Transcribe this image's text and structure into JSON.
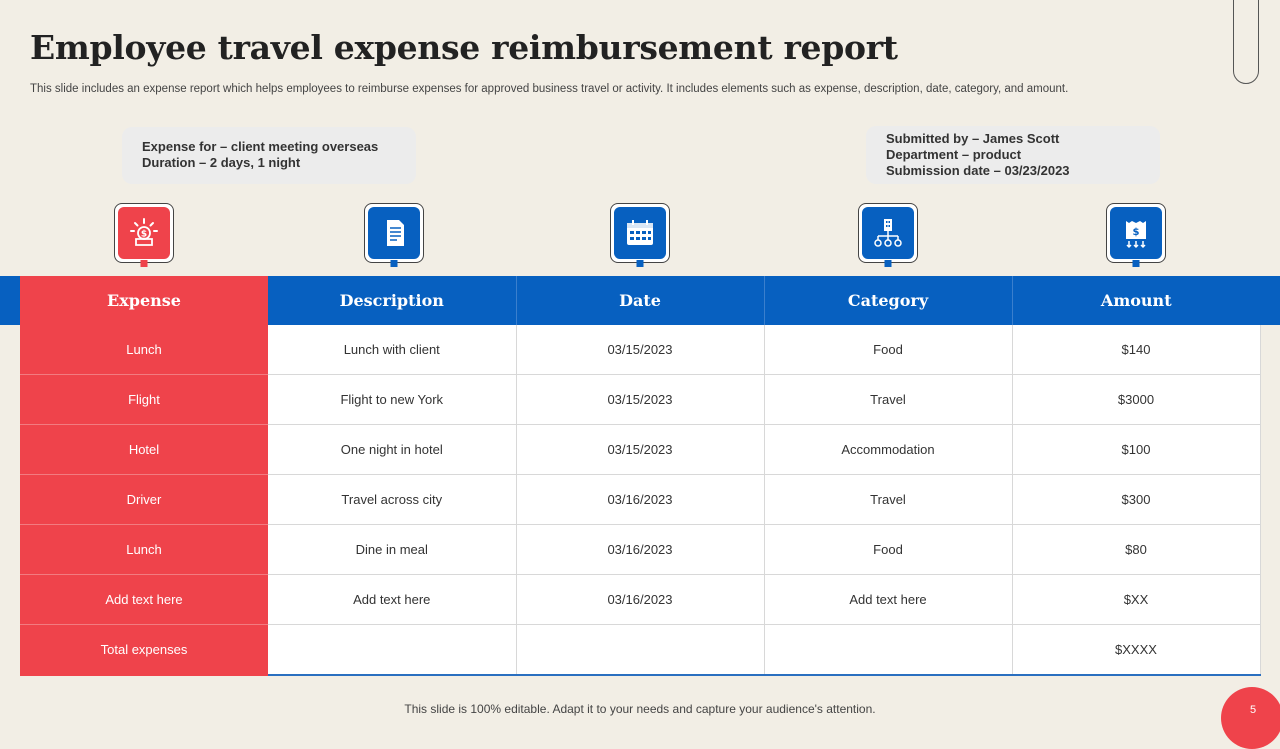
{
  "title": "Employee travel expense reimbursement report",
  "subtitle": "This slide includes an expense report which helps employees to reimburse expenses for approved business travel or activity.  It includes elements such as expense, description, date, category, and amount.",
  "info_left": {
    "line1": "Expense for – client meeting overseas",
    "line2": "Duration – 2 days, 1 night"
  },
  "info_right": {
    "line1": "Submitted by –  James Scott",
    "line2": "Department –  product",
    "line3": "Submission  date – 03/23/2023"
  },
  "icons": [
    "money-icon",
    "document-icon",
    "calendar-icon",
    "org-chart-icon",
    "invoice-icon"
  ],
  "columns": [
    "Expense",
    "Description",
    "Date",
    "Category",
    "Amount"
  ],
  "rows": [
    [
      "Lunch",
      "Lunch with client",
      "03/15/2023",
      "Food",
      "$140"
    ],
    [
      "Flight",
      "Flight to new York",
      "03/15/2023",
      "Travel",
      "$3000"
    ],
    [
      "Hotel",
      "One night in hotel",
      "03/15/2023",
      "Accommodation",
      "$100"
    ],
    [
      "Driver",
      "Travel  across city",
      "03/16/2023",
      "Travel",
      "$300"
    ],
    [
      "Lunch",
      "Dine in meal",
      "03/16/2023",
      "Food",
      "$80"
    ],
    [
      "Add text here",
      "Add text here",
      "03/16/2023",
      "Add text here",
      "$XX"
    ],
    [
      "Total expenses",
      "",
      "",
      "",
      "$XXXX"
    ]
  ],
  "footer": "This slide is 100% editable. Adapt it to your needs and capture your audience's attention.",
  "page_number": "5",
  "colors": {
    "red": "#ef434b",
    "blue": "#0760c0",
    "background": "#f2eee5"
  }
}
